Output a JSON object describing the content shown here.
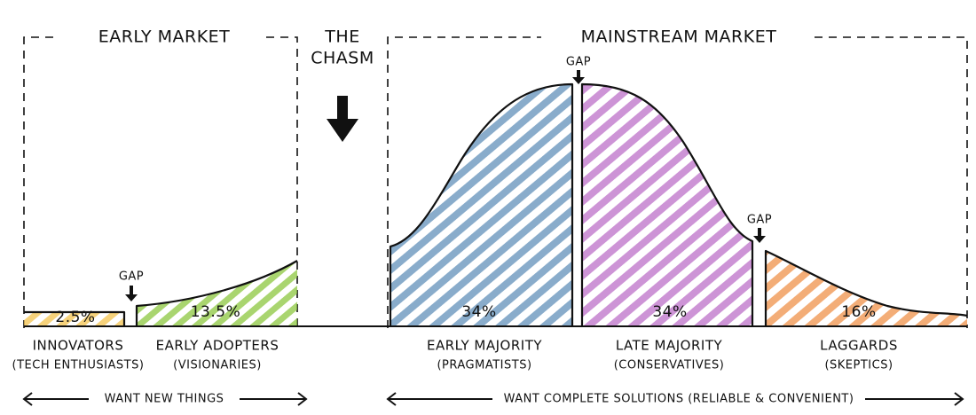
{
  "left_market": {
    "title": "EARLY MARKET",
    "note": "WANT NEW THINGS"
  },
  "chasm": {
    "title_lines": [
      "THE",
      "CHASM"
    ]
  },
  "right_market": {
    "title": "MAINSTREAM MARKET",
    "note": "WANT COMPLETE SOLUTIONS (RELIABLE & CONVENIENT)"
  },
  "gaps": [
    "GAP",
    "GAP",
    "GAP"
  ],
  "segments": [
    {
      "name": "INNOVATORS",
      "group": "(TECH ENTHUSIASTS)",
      "share": "2.5%"
    },
    {
      "name": "EARLY ADOPTERS",
      "group": "(VISIONARIES)",
      "share": "13.5%"
    },
    {
      "name": "EARLY MAJORITY",
      "group": "(PRAGMATISTS)",
      "share": "34%"
    },
    {
      "name": "LATE MAJORITY",
      "group": "(CONSERVATIVES)",
      "share": "34%"
    },
    {
      "name": "LAGGARDS",
      "group": "(SKEPTICS)",
      "share": "16%"
    }
  ]
}
